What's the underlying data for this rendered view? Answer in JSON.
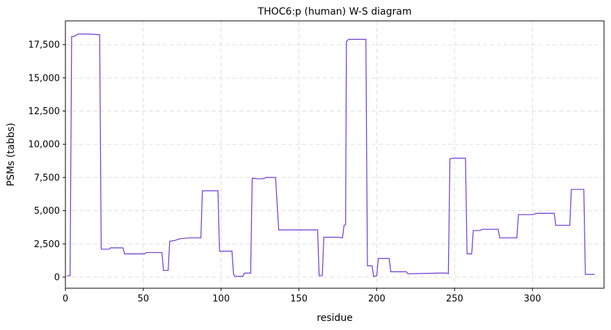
{
  "chart_data": {
    "type": "line",
    "title": "THOC6:p (human) W-S diagram",
    "x_label": "residue",
    "y_label": "PSMs (tabbs)",
    "x": [
      1,
      3,
      4,
      6,
      8,
      15,
      22,
      23,
      28,
      29,
      37,
      38,
      51,
      52,
      62,
      63,
      66,
      67,
      70,
      74,
      80,
      87,
      88,
      98,
      99,
      107,
      108,
      109,
      114,
      115,
      119,
      120,
      123,
      127,
      129,
      135,
      137,
      162,
      163,
      165,
      166,
      175,
      178,
      179,
      180,
      180.5,
      182,
      193,
      194,
      197,
      198,
      200,
      201,
      208,
      209,
      219,
      220,
      240,
      245,
      246,
      247,
      249,
      257,
      258,
      261,
      262,
      266,
      268,
      278,
      279,
      290,
      291,
      300,
      303,
      314,
      315,
      324,
      325,
      333,
      334,
      340
    ],
    "series": [
      {
        "name": "PSMs",
        "color": "#6a35d4",
        "values": [
          100,
          100,
          18100,
          18150,
          18300,
          18300,
          18250,
          2100,
          2100,
          2200,
          2200,
          1750,
          1750,
          1850,
          1850,
          500,
          500,
          2700,
          2750,
          2900,
          2950,
          2950,
          6500,
          6500,
          1950,
          1950,
          200,
          50,
          50,
          300,
          300,
          7450,
          7400,
          7400,
          7500,
          7500,
          3550,
          3550,
          100,
          100,
          3000,
          3000,
          2950,
          3900,
          3950,
          17750,
          17900,
          17900,
          850,
          850,
          50,
          100,
          1400,
          1400,
          400,
          400,
          250,
          300,
          300,
          250,
          8900,
          8950,
          8950,
          1750,
          1750,
          3500,
          3500,
          3600,
          3600,
          2950,
          2950,
          4700,
          4700,
          4800,
          4800,
          3900,
          3900,
          6600,
          6600,
          200,
          200
        ]
      }
    ],
    "xlim": [
      0,
      346
    ],
    "xticks": [
      0,
      50,
      100,
      150,
      200,
      250,
      300
    ],
    "ylim": [
      -840,
      19290
    ],
    "yticks": [
      0,
      {
        "value": 2500,
        "label": "2,500"
      },
      {
        "value": 5000,
        "label": "5,000"
      },
      {
        "value": 7500,
        "label": "7,500"
      },
      {
        "value": 10000,
        "label": "10,000"
      },
      {
        "value": 12500,
        "label": "12,500"
      },
      {
        "value": 15000,
        "label": "15,000"
      },
      {
        "value": 17500,
        "label": "17,500"
      }
    ],
    "grid": true
  }
}
